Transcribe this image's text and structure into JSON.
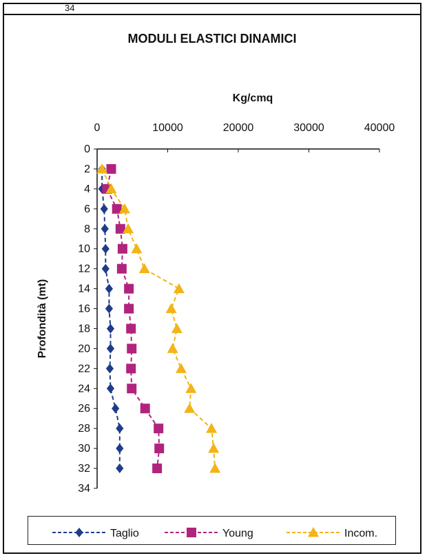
{
  "header": {
    "fragment": "34"
  },
  "chart_data": {
    "type": "line",
    "title": "MODULI ELASTICI DINAMICI",
    "xlabel": "Kg/cmq",
    "ylabel": "Profondità (mt)",
    "xlim": [
      0,
      40000
    ],
    "ylim": [
      34,
      0
    ],
    "x_position": "top",
    "y_inverted": true,
    "xticks": [
      "0",
      "10000",
      "20000",
      "30000",
      "40000"
    ],
    "yticks": [
      "0",
      "2",
      "4",
      "6",
      "8",
      "10",
      "12",
      "14",
      "16",
      "18",
      "20",
      "22",
      "24",
      "26",
      "28",
      "30",
      "32",
      "34"
    ],
    "legend_position": "bottom",
    "grid": false,
    "series": [
      {
        "name": "Taglio",
        "color": "#1f3c8a",
        "marker": "diamond",
        "points": [
          [
            700,
            2
          ],
          [
            700,
            4
          ],
          [
            1000,
            6
          ],
          [
            1100,
            8
          ],
          [
            1200,
            10
          ],
          [
            1200,
            12
          ],
          [
            1700,
            14
          ],
          [
            1700,
            16
          ],
          [
            1900,
            18
          ],
          [
            1900,
            20
          ],
          [
            1800,
            22
          ],
          [
            1900,
            24
          ],
          [
            2600,
            26
          ],
          [
            3200,
            28
          ],
          [
            3200,
            30
          ],
          [
            3200,
            32
          ]
        ]
      },
      {
        "name": "Young",
        "color": "#b0247e",
        "marker": "square",
        "points": [
          [
            2000,
            2
          ],
          [
            1400,
            4
          ],
          [
            2800,
            6
          ],
          [
            3300,
            8
          ],
          [
            3600,
            10
          ],
          [
            3500,
            12
          ],
          [
            4500,
            14
          ],
          [
            4500,
            16
          ],
          [
            4800,
            18
          ],
          [
            4900,
            20
          ],
          [
            4800,
            22
          ],
          [
            4900,
            24
          ],
          [
            6800,
            26
          ],
          [
            8700,
            28
          ],
          [
            8800,
            30
          ],
          [
            8500,
            32
          ]
        ]
      },
      {
        "name": "Incom.",
        "color": "#f2b416",
        "marker": "triangle",
        "points": [
          [
            700,
            2
          ],
          [
            2000,
            4
          ],
          [
            3900,
            6
          ],
          [
            4400,
            8
          ],
          [
            5600,
            10
          ],
          [
            6700,
            12
          ],
          [
            11600,
            14
          ],
          [
            10500,
            16
          ],
          [
            11300,
            18
          ],
          [
            10700,
            20
          ],
          [
            11900,
            22
          ],
          [
            13300,
            24
          ],
          [
            13100,
            26
          ],
          [
            16200,
            28
          ],
          [
            16500,
            30
          ],
          [
            16700,
            32
          ]
        ]
      }
    ]
  }
}
